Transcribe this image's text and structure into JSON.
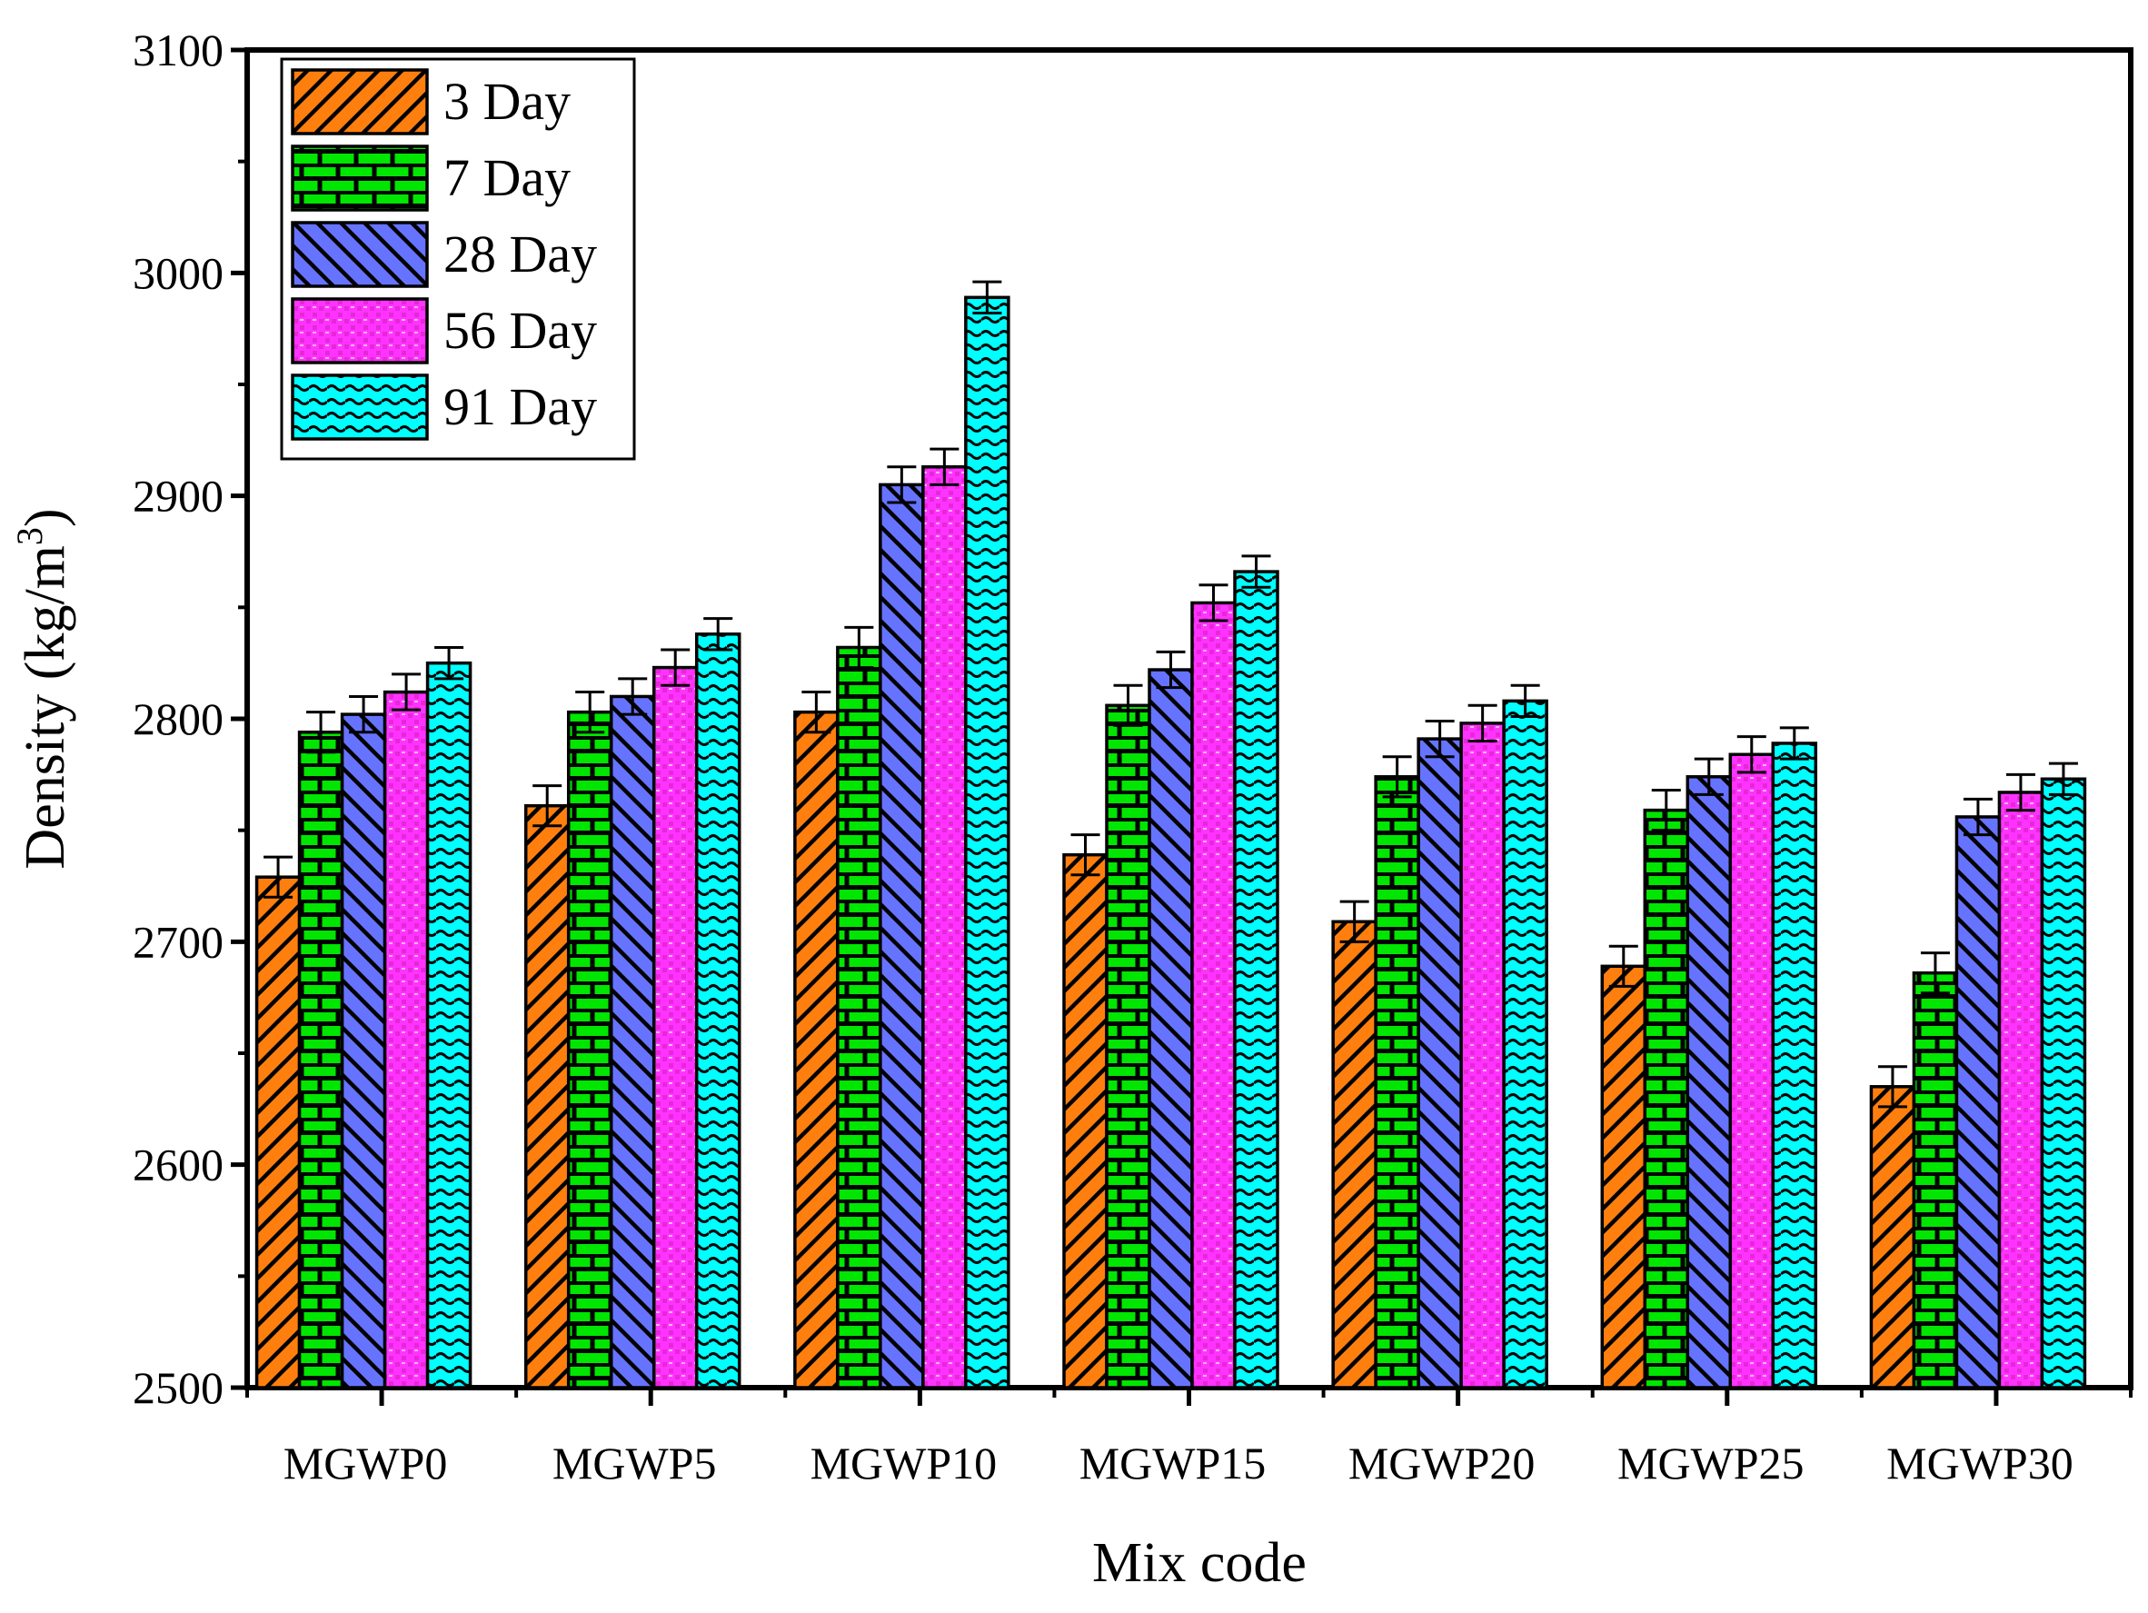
{
  "chart_data": {
    "type": "bar",
    "xlabel": "Mix code",
    "ylabel": "Density (kg/m",
    "ylabel_superscript": "3",
    "ylabel_close": ")",
    "ylim": [
      2500,
      3100
    ],
    "yticks": [
      2500,
      2600,
      2700,
      2800,
      2900,
      3000,
      3100
    ],
    "categories": [
      "MGWP0",
      "MGWP5",
      "MGWP10",
      "MGWP15",
      "MGWP20",
      "MGWP25",
      "MGWP30"
    ],
    "series": [
      {
        "name": "3 Day",
        "color": "#ff7f0e",
        "pattern": "diag-right",
        "values": [
          2729,
          2761,
          2803,
          2739,
          2709,
          2689,
          2635
        ],
        "errors": [
          9,
          9,
          9,
          9,
          9,
          9,
          9
        ]
      },
      {
        "name": "7 Day",
        "color": "#00e600",
        "pattern": "brick",
        "values": [
          2794,
          2803,
          2832,
          2806,
          2774,
          2759,
          2686
        ],
        "errors": [
          9,
          9,
          9,
          9,
          9,
          9,
          9
        ]
      },
      {
        "name": "28 Day",
        "color": "#6673ff",
        "pattern": "diag-left",
        "values": [
          2802,
          2810,
          2905,
          2822,
          2791,
          2774,
          2756
        ],
        "errors": [
          8,
          8,
          8,
          8,
          8,
          8,
          8
        ]
      },
      {
        "name": "56 Day",
        "color": "#ff33ff",
        "pattern": "dots",
        "values": [
          2812,
          2823,
          2913,
          2852,
          2798,
          2784,
          2767
        ],
        "errors": [
          8,
          8,
          8,
          8,
          8,
          8,
          8
        ]
      },
      {
        "name": "91 Day",
        "color": "#00ffff",
        "pattern": "wave",
        "values": [
          2825,
          2838,
          2989,
          2866,
          2808,
          2789,
          2773
        ],
        "errors": [
          7,
          7,
          7,
          7,
          7,
          7,
          7
        ]
      }
    ]
  }
}
